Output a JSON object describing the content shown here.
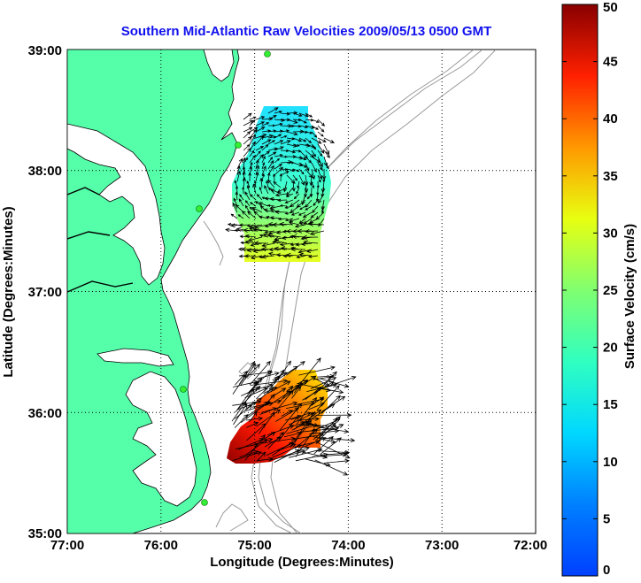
{
  "title": "Southern Mid-Atlantic Raw Velocities 2009/05/13 0500 GMT",
  "axes": {
    "xlabel": "Longitude (Degrees:Minutes)",
    "ylabel": "Latitude (Degrees:Minutes)",
    "x_ticks": [
      "77:00",
      "76:00",
      "75:00",
      "74:00",
      "73:00",
      "72:00"
    ],
    "y_ticks": [
      "39:00",
      "38:00",
      "37:00",
      "36:00",
      "35:00"
    ],
    "grid": "dotted"
  },
  "colorbar": {
    "label": "Surface Velocity (cm/s)",
    "ticks": [
      "0",
      "5",
      "10",
      "15",
      "20",
      "25",
      "30",
      "35",
      "40",
      "45",
      "50"
    ],
    "min": 0,
    "max": 50,
    "colormap": "jet"
  },
  "colors": {
    "land": "#55ffaa",
    "ocean": "#ffffff",
    "bathymetry": "#999999",
    "stations": "#33ee33",
    "title": "#1010ee"
  },
  "chart_data": {
    "type": "vector-field map",
    "xlim_lon_deg_west": [
      77,
      72
    ],
    "ylim_lat_deg_north": [
      35,
      39
    ],
    "stations": [
      {
        "lon": 74.95,
        "lat": 38.98
      },
      {
        "lon": 75.08,
        "lat": 38.22
      },
      {
        "lon": 75.55,
        "lat": 37.7
      },
      {
        "lon": 75.83,
        "lat": 36.2
      },
      {
        "lon": 75.52,
        "lat": 35.25
      }
    ],
    "regions": [
      {
        "name": "north",
        "lon_range": [
          74.85,
          73.95
        ],
        "lat_range": [
          37.25,
          38.55
        ],
        "speed_cm_s_range": [
          8,
          28
        ]
      },
      {
        "name": "south",
        "lon_range": [
          75.2,
          74.35
        ],
        "lat_range": [
          35.65,
          36.35
        ],
        "speed_cm_s_range": [
          25,
          50
        ]
      }
    ]
  }
}
